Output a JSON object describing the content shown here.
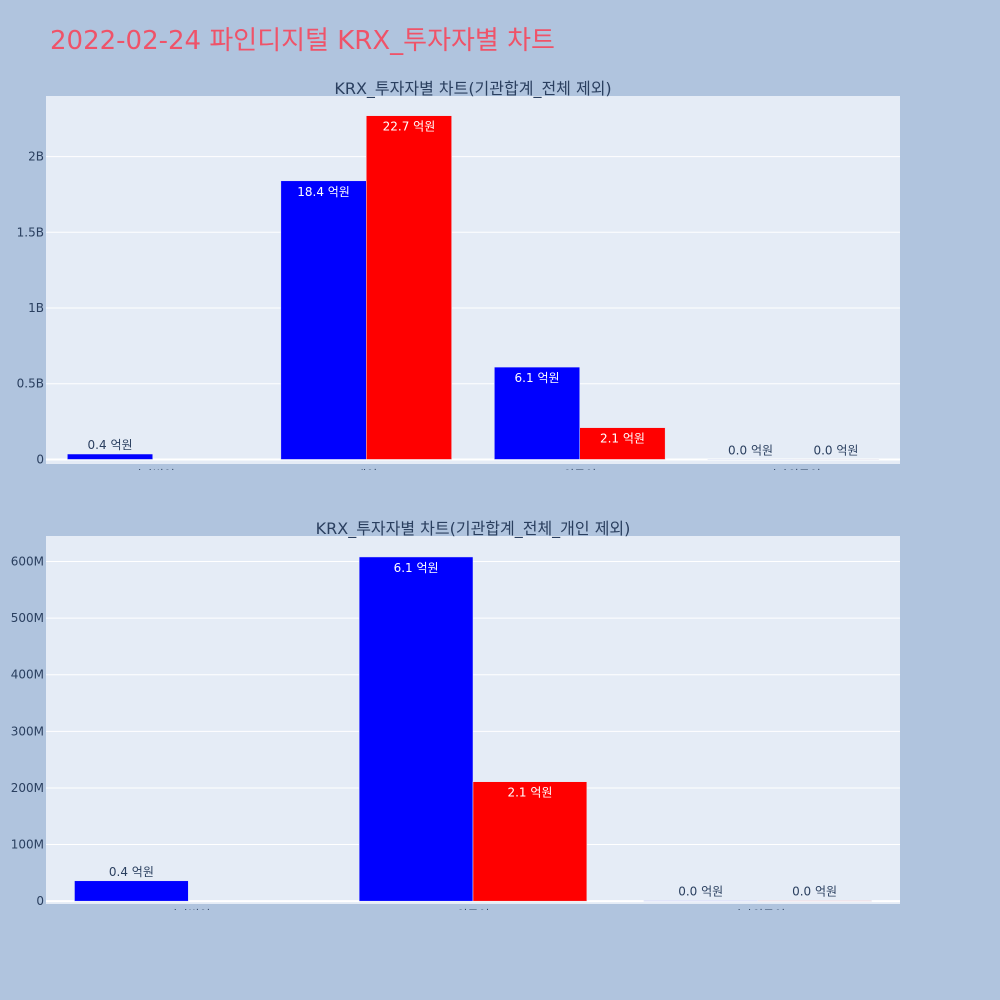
{
  "page_title": "2022-02-24 파인디지털 KRX_투자자별 차트",
  "colors": {
    "background": "#b0c4de",
    "plot_background": "#e5ecf6",
    "title": "#ef5369",
    "text": "#2a3f5f",
    "series_blue": "#0000ff",
    "series_red": "#ff0000"
  },
  "chart_data": [
    {
      "type": "bar",
      "title": "KRX_투자자별 차트(기관합계_전체 제외)",
      "categories": [
        "기타법인",
        "개인",
        "외국인",
        "기타외국인"
      ],
      "series": [
        {
          "color": "#0000ff",
          "values": [
            36000000,
            1840000000,
            610000000,
            1000000
          ],
          "labels": [
            "0.4 억원",
            "18.4 억원",
            "6.1 억원",
            "0.0 억원"
          ]
        },
        {
          "color": "#ff0000",
          "values": [
            0,
            2270000000,
            210000000,
            1000000
          ],
          "labels": [
            "",
            "22.7 억원",
            "2.1 억원",
            "0.0 억원"
          ]
        }
      ],
      "ylim": [
        -30000000,
        2400000000
      ],
      "yticks": [
        0,
        500000000,
        1000000000,
        1500000000,
        2000000000
      ],
      "ytick_labels": [
        "0",
        "0.5B",
        "1B",
        "1.5B",
        "2B"
      ],
      "grid": true,
      "legend": "none"
    },
    {
      "type": "bar",
      "title": "KRX_투자자별 차트(기관합계_전체_개인 제외)",
      "categories": [
        "기타법인",
        "외국인",
        "기타외국인"
      ],
      "series": [
        {
          "color": "#0000ff",
          "values": [
            36000000,
            608000000,
            1000000
          ],
          "labels": [
            "0.4 억원",
            "6.1 억원",
            "0.0 억원"
          ]
        },
        {
          "color": "#ff0000",
          "values": [
            0,
            211000000,
            1000000
          ],
          "labels": [
            "",
            "2.1 억원",
            "0.0 억원"
          ]
        }
      ],
      "ylim": [
        -5000000,
        645000000
      ],
      "yticks": [
        0,
        100000000,
        200000000,
        300000000,
        400000000,
        500000000,
        600000000
      ],
      "ytick_labels": [
        "0",
        "100M",
        "200M",
        "300M",
        "400M",
        "500M",
        "600M"
      ],
      "grid": true,
      "legend": "none"
    }
  ]
}
